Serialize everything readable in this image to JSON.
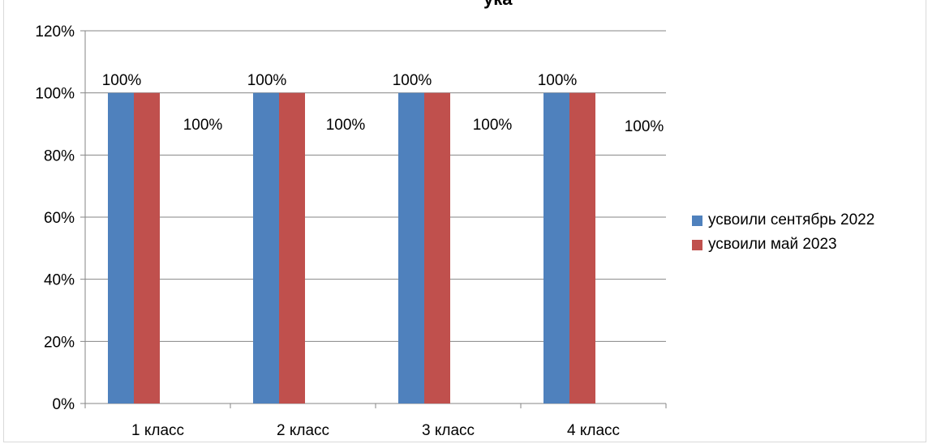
{
  "title_fragment": "ука",
  "legend": {
    "items": [
      {
        "label": "усвоили сентябрь 2022",
        "color": "#4f81bd"
      },
      {
        "label": "усвоили май 2023",
        "color": "#c0504d"
      }
    ]
  },
  "chart_data": {
    "type": "bar",
    "categories": [
      "1 класс",
      "2 класс",
      "3 класс",
      "4 класс"
    ],
    "series": [
      {
        "name": "усвоили сентябрь 2022",
        "values": [
          100,
          100,
          100,
          100
        ],
        "color": "#4f81bd",
        "data_labels": [
          "100%",
          "100%",
          "100%",
          "100%"
        ]
      },
      {
        "name": "усвоили май 2023",
        "values": [
          100,
          100,
          100,
          100
        ],
        "color": "#c0504d",
        "data_labels": [
          "100%",
          "100%",
          "100%",
          "100%"
        ]
      }
    ],
    "ylim": [
      0,
      120
    ],
    "yticks": [
      0,
      20,
      40,
      60,
      80,
      100,
      120
    ],
    "ytick_labels": [
      "0%",
      "20%",
      "40%",
      "60%",
      "80%",
      "100%",
      "120%"
    ],
    "grid": true,
    "legend_position": "right",
    "xlabel": "",
    "ylabel": ""
  }
}
